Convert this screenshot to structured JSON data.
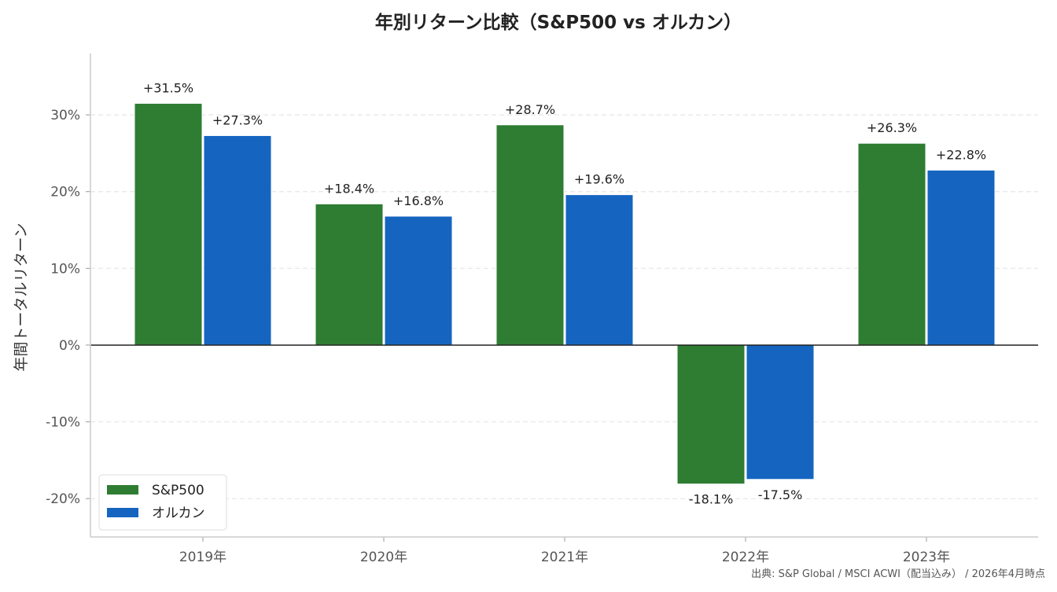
{
  "chart_data": {
    "type": "bar",
    "title": "年別リターン比較（S&P500 vs オルカン）",
    "xlabel": "",
    "ylabel": "年間トータルリターン",
    "categories": [
      "2019年",
      "2020年",
      "2021年",
      "2022年",
      "2023年"
    ],
    "series": [
      {
        "name": "S&P500",
        "values": [
          31.5,
          18.4,
          28.7,
          -18.1,
          26.3
        ],
        "labels": [
          "+31.5%",
          "+18.4%",
          "+28.7%",
          "-18.1%",
          "+26.3%"
        ],
        "color": "#2e7d32"
      },
      {
        "name": "オルカン",
        "values": [
          27.3,
          16.8,
          19.6,
          -17.5,
          22.8
        ],
        "labels": [
          "+27.3%",
          "+16.8%",
          "+19.6%",
          "-17.5%",
          "+22.8%"
        ],
        "color": "#1565c0"
      }
    ],
    "ylim": [
      -25,
      38
    ],
    "yticks": [
      -20,
      -10,
      0,
      10,
      20,
      30
    ],
    "ytick_labels": [
      "-20%",
      "-10%",
      "0%",
      "10%",
      "20%",
      "30%"
    ],
    "grid": "horizontal dashed",
    "legend": "bottom-left",
    "source": "出典: S&P Global / MSCI ACWI（配当込み） / 2026年4月時点"
  }
}
